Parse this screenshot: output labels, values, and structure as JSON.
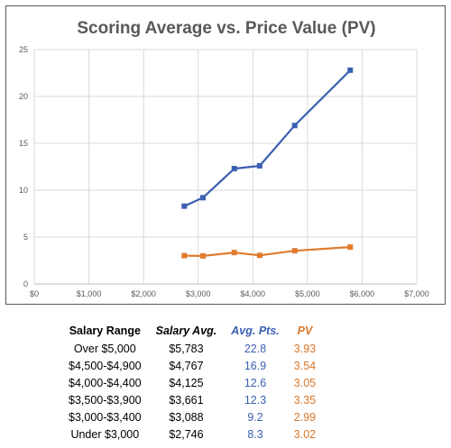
{
  "chart_data": {
    "type": "line",
    "title": "Scoring Average vs. Price Value (PV)",
    "xlabel": "",
    "ylabel": "",
    "xlim": [
      0,
      7000
    ],
    "ylim": [
      0,
      25
    ],
    "x_ticks": [
      0,
      1000,
      2000,
      3000,
      4000,
      5000,
      6000,
      7000
    ],
    "x_tick_labels": [
      "$0",
      "$1,000",
      "$2,000",
      "$3,000",
      "$4,000",
      "$5,000",
      "$6,000",
      "$7,000"
    ],
    "y_ticks": [
      0,
      5,
      10,
      15,
      20,
      25
    ],
    "y_tick_labels": [
      "0",
      "5",
      "10",
      "15",
      "20",
      "25"
    ],
    "grid": true,
    "legend": "none",
    "x": [
      2746,
      3088,
      3661,
      4125,
      4767,
      5783
    ],
    "series": [
      {
        "values": [
          8.3,
          9.2,
          12.3,
          12.6,
          16.9,
          22.8
        ],
        "color": "#3b5fb0",
        "marker": "square"
      },
      {
        "values": [
          3.02,
          2.99,
          3.35,
          3.05,
          3.54,
          3.93
        ],
        "color": "#e07b2e",
        "marker": "square"
      }
    ]
  },
  "table": {
    "headers": [
      "Salary Range",
      "Salary Avg.",
      "Avg. Pts.",
      "PV"
    ],
    "rows": [
      [
        "Over $5,000",
        "$5,783",
        "22.8",
        "3.93"
      ],
      [
        "$4,500-$4,900",
        "$4,767",
        "16.9",
        "3.54"
      ],
      [
        "$4,000-$4,400",
        "$4,125",
        "12.6",
        "3.05"
      ],
      [
        "$3,500-$3,900",
        "$3,661",
        "12.3",
        "3.35"
      ],
      [
        "$3,000-$3,400",
        "$3,088",
        "9.2",
        "2.99"
      ],
      [
        "Under $3,000",
        "$2,746",
        "8.3",
        "3.02"
      ]
    ]
  }
}
